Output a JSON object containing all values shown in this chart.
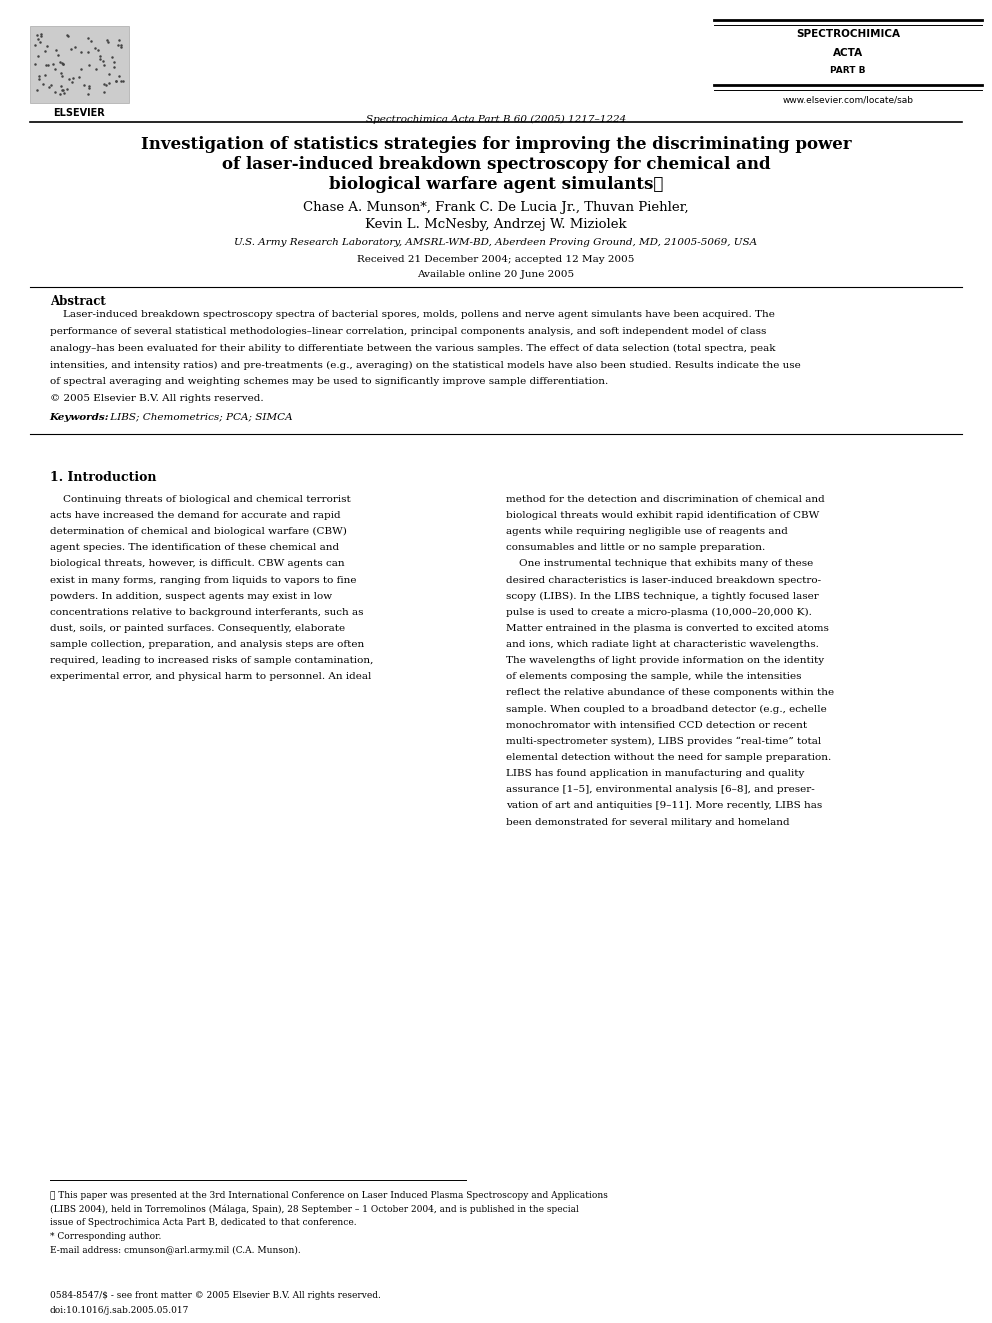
{
  "page_width": 9.92,
  "page_height": 13.23,
  "background_color": "#ffffff",
  "journal_name_line1": "SPECTROCHIMICA",
  "journal_name_line2": "ACTA",
  "journal_name_line3": "PART B",
  "journal_info": "Spectrochimica Acta Part B 60 (2005) 1217–1224",
  "website": "www.elsevier.com/locate/sab",
  "title_line1": "Investigation of statistics strategies for improving the discriminating power",
  "title_line2": "of laser-induced breakdown spectroscopy for chemical and",
  "title_line3": "biological warfare agent simulants☆",
  "authors": "Chase A. Munson*, Frank C. De Lucia Jr., Thuvan Piehler,",
  "authors2": "Kevin L. McNesby, Andrzej W. Miziolek",
  "affiliation": "U.S. Army Research Laboratory, AMSRL-WM-BD, Aberdeen Proving Ground, MD, 21005-5069, USA",
  "received": "Received 21 December 2004; accepted 12 May 2005",
  "available": "Available online 20 June 2005",
  "abstract_label": "Abstract",
  "copyright": "© 2005 Elsevier B.V. All rights reserved.",
  "keywords": "LIBS; Chemometrics; PCA; SIMCA",
  "section1_label": "1. Introduction",
  "issn": "0584-8547/$ - see front matter © 2005 Elsevier B.V. All rights reserved.",
  "doi": "doi:10.1016/j.sab.2005.05.017",
  "abs_lines": [
    "    Laser-induced breakdown spectroscopy spectra of bacterial spores, molds, pollens and nerve agent simulants have been acquired. The",
    "performance of several statistical methodologies–linear correlation, principal components analysis, and soft independent model of class",
    "analogy–has been evaluated for their ability to differentiate between the various samples. The effect of data selection (total spectra, peak",
    "intensities, and intensity ratios) and pre-treatments (e.g., averaging) on the statistical models have also been studied. Results indicate the use",
    "of spectral averaging and weighting schemes may be used to significantly improve sample differentiation."
  ],
  "intro_left_lines": [
    "    Continuing threats of biological and chemical terrorist",
    "acts have increased the demand for accurate and rapid",
    "determination of chemical and biological warfare (CBW)",
    "agent species. The identification of these chemical and",
    "biological threats, however, is difficult. CBW agents can",
    "exist in many forms, ranging from liquids to vapors to fine",
    "powders. In addition, suspect agents may exist in low",
    "concentrations relative to background interferants, such as",
    "dust, soils, or painted surfaces. Consequently, elaborate",
    "sample collection, preparation, and analysis steps are often",
    "required, leading to increased risks of sample contamination,",
    "experimental error, and physical harm to personnel. An ideal"
  ],
  "intro_right_lines": [
    "method for the detection and discrimination of chemical and",
    "biological threats would exhibit rapid identification of CBW",
    "agents while requiring negligible use of reagents and",
    "consumables and little or no sample preparation.",
    "    One instrumental technique that exhibits many of these",
    "desired characteristics is laser-induced breakdown spectro-",
    "scopy (LIBS). In the LIBS technique, a tightly focused laser",
    "pulse is used to create a micro-plasma (10,000–20,000 K).",
    "Matter entrained in the plasma is converted to excited atoms",
    "and ions, which radiate light at characteristic wavelengths.",
    "The wavelengths of light provide information on the identity",
    "of elements composing the sample, while the intensities",
    "reflect the relative abundance of these components within the",
    "sample. When coupled to a broadband detector (e.g., echelle",
    "monochromator with intensified CCD detection or recent",
    "multi-spectrometer system), LIBS provides “real-time” total",
    "elemental detection without the need for sample preparation.",
    "LIBS has found application in manufacturing and quality",
    "assurance [1–5], environmental analysis [6–8], and preser-",
    "vation of art and antiquities [9–11]. More recently, LIBS has",
    "been demonstrated for several military and homeland"
  ],
  "fn_lines": [
    "★ This paper was presented at the 3rd International Conference on Laser Induced Plasma Spectroscopy and Applications",
    "(LIBS 2004), held in Torremolinos (Málaga, Spain), 28 September – 1 October 2004, and is published in the special",
    "issue of Spectrochimica Acta Part B, dedicated to that conference.",
    "* Corresponding author.",
    "E-mail address: cmunson@arl.army.mil (C.A. Munson)."
  ]
}
